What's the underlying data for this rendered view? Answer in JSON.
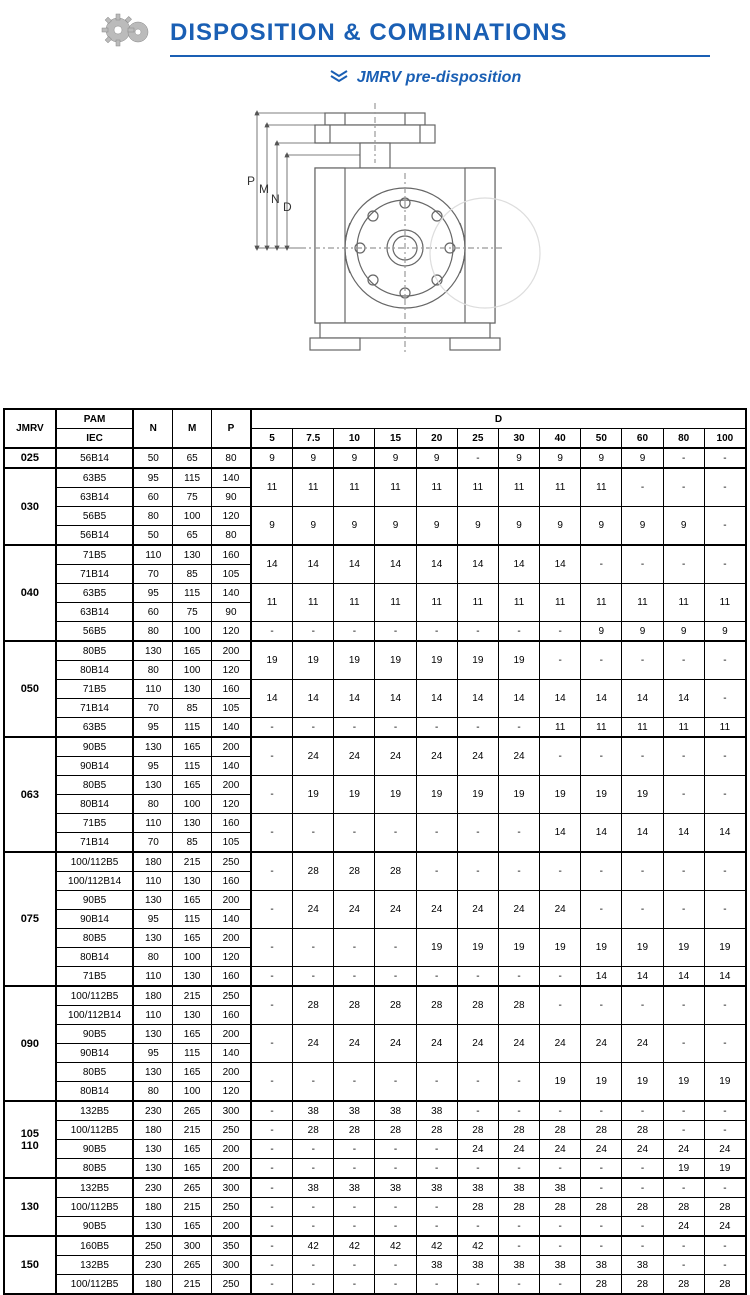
{
  "header": {
    "title": "DISPOSITION & COMBINATIONS",
    "subtitle": "JMRV pre-disposition"
  },
  "diagram_labels": [
    "P",
    "M",
    "N",
    "D"
  ],
  "table": {
    "header_row1": [
      "JMRV",
      "PAM",
      "N",
      "M",
      "P",
      "D"
    ],
    "header_row2_pam": "IEC",
    "d_cols": [
      "5",
      "7.5",
      "10",
      "15",
      "20",
      "25",
      "30",
      "40",
      "50",
      "60",
      "80",
      "100"
    ],
    "groups": [
      {
        "jmrv": "025",
        "rows": [
          {
            "iec": "56B14",
            "n": "50",
            "m": "65",
            "p": "80",
            "d": [
              "9",
              "9",
              "9",
              "9",
              "9",
              "-",
              "9",
              "9",
              "9",
              "9",
              "-",
              "-"
            ]
          }
        ]
      },
      {
        "jmrv": "030",
        "rows": [
          {
            "iec": "63B5",
            "n": "95",
            "m": "115",
            "p": "140",
            "d": [
              "11",
              "11",
              "11",
              "11",
              "11",
              "11",
              "11",
              "11",
              "11",
              "-",
              "-",
              "-"
            ],
            "span": 2
          },
          {
            "iec": "63B14",
            "n": "60",
            "m": "75",
            "p": "90"
          },
          {
            "iec": "56B5",
            "n": "80",
            "m": "100",
            "p": "120",
            "d": [
              "9",
              "9",
              "9",
              "9",
              "9",
              "9",
              "9",
              "9",
              "9",
              "9",
              "9",
              "-"
            ],
            "span": 2
          },
          {
            "iec": "56B14",
            "n": "50",
            "m": "65",
            "p": "80"
          }
        ]
      },
      {
        "jmrv": "040",
        "rows": [
          {
            "iec": "71B5",
            "n": "110",
            "m": "130",
            "p": "160",
            "d": [
              "14",
              "14",
              "14",
              "14",
              "14",
              "14",
              "14",
              "14",
              "-",
              "-",
              "-",
              "-"
            ],
            "span": 2
          },
          {
            "iec": "71B14",
            "n": "70",
            "m": "85",
            "p": "105"
          },
          {
            "iec": "63B5",
            "n": "95",
            "m": "115",
            "p": "140",
            "d": [
              "11",
              "11",
              "11",
              "11",
              "11",
              "11",
              "11",
              "11",
              "11",
              "11",
              "11",
              "11"
            ],
            "span": 2
          },
          {
            "iec": "63B14",
            "n": "60",
            "m": "75",
            "p": "90"
          },
          {
            "iec": "56B5",
            "n": "80",
            "m": "100",
            "p": "120",
            "d": [
              "-",
              "-",
              "-",
              "-",
              "-",
              "-",
              "-",
              "-",
              "9",
              "9",
              "9",
              "9"
            ]
          }
        ]
      },
      {
        "jmrv": "050",
        "rows": [
          {
            "iec": "80B5",
            "n": "130",
            "m": "165",
            "p": "200",
            "d": [
              "19",
              "19",
              "19",
              "19",
              "19",
              "19",
              "19",
              "-",
              "-",
              "-",
              "-",
              "-"
            ],
            "span": 2
          },
          {
            "iec": "80B14",
            "n": "80",
            "m": "100",
            "p": "120"
          },
          {
            "iec": "71B5",
            "n": "110",
            "m": "130",
            "p": "160",
            "d": [
              "14",
              "14",
              "14",
              "14",
              "14",
              "14",
              "14",
              "14",
              "14",
              "14",
              "14",
              "-"
            ],
            "span": 2
          },
          {
            "iec": "71B14",
            "n": "70",
            "m": "85",
            "p": "105"
          },
          {
            "iec": "63B5",
            "n": "95",
            "m": "115",
            "p": "140",
            "d": [
              "-",
              "-",
              "-",
              "-",
              "-",
              "-",
              "-",
              "11",
              "11",
              "11",
              "11",
              "11"
            ]
          }
        ]
      },
      {
        "jmrv": "063",
        "rows": [
          {
            "iec": "90B5",
            "n": "130",
            "m": "165",
            "p": "200",
            "d": [
              "-",
              "24",
              "24",
              "24",
              "24",
              "24",
              "24",
              "-",
              "-",
              "-",
              "-",
              "-"
            ],
            "span": 2
          },
          {
            "iec": "90B14",
            "n": "95",
            "m": "115",
            "p": "140"
          },
          {
            "iec": "80B5",
            "n": "130",
            "m": "165",
            "p": "200",
            "d": [
              "-",
              "19",
              "19",
              "19",
              "19",
              "19",
              "19",
              "19",
              "19",
              "19",
              "-",
              "-"
            ],
            "span": 2
          },
          {
            "iec": "80B14",
            "n": "80",
            "m": "100",
            "p": "120"
          },
          {
            "iec": "71B5",
            "n": "110",
            "m": "130",
            "p": "160",
            "d": [
              "-",
              "-",
              "-",
              "-",
              "-",
              "-",
              "-",
              "14",
              "14",
              "14",
              "14",
              "14"
            ],
            "span": 2
          },
          {
            "iec": "71B14",
            "n": "70",
            "m": "85",
            "p": "105"
          }
        ]
      },
      {
        "jmrv": "075",
        "rows": [
          {
            "iec": "100/112B5",
            "n": "180",
            "m": "215",
            "p": "250",
            "d": [
              "-",
              "28",
              "28",
              "28",
              "-",
              "-",
              "-",
              "-",
              "-",
              "-",
              "-",
              "-"
            ],
            "span": 2
          },
          {
            "iec": "100/112B14",
            "n": "110",
            "m": "130",
            "p": "160"
          },
          {
            "iec": "90B5",
            "n": "130",
            "m": "165",
            "p": "200",
            "d": [
              "-",
              "24",
              "24",
              "24",
              "24",
              "24",
              "24",
              "24",
              "-",
              "-",
              "-",
              "-"
            ],
            "span": 2
          },
          {
            "iec": "90B14",
            "n": "95",
            "m": "115",
            "p": "140"
          },
          {
            "iec": "80B5",
            "n": "130",
            "m": "165",
            "p": "200",
            "d": [
              "-",
              "-",
              "-",
              "-",
              "19",
              "19",
              "19",
              "19",
              "19",
              "19",
              "19",
              "19"
            ],
            "span": 2
          },
          {
            "iec": "80B14",
            "n": "80",
            "m": "100",
            "p": "120"
          },
          {
            "iec": "71B5",
            "n": "110",
            "m": "130",
            "p": "160",
            "d": [
              "-",
              "-",
              "-",
              "-",
              "-",
              "-",
              "-",
              "-",
              "14",
              "14",
              "14",
              "14"
            ]
          }
        ]
      },
      {
        "jmrv": "090",
        "rows": [
          {
            "iec": "100/112B5",
            "n": "180",
            "m": "215",
            "p": "250",
            "d": [
              "-",
              "28",
              "28",
              "28",
              "28",
              "28",
              "28",
              "-",
              "-",
              "-",
              "-",
              "-"
            ],
            "span": 2
          },
          {
            "iec": "100/112B14",
            "n": "110",
            "m": "130",
            "p": "160"
          },
          {
            "iec": "90B5",
            "n": "130",
            "m": "165",
            "p": "200",
            "d": [
              "-",
              "24",
              "24",
              "24",
              "24",
              "24",
              "24",
              "24",
              "24",
              "24",
              "-",
              "-"
            ],
            "span": 2
          },
          {
            "iec": "90B14",
            "n": "95",
            "m": "115",
            "p": "140"
          },
          {
            "iec": "80B5",
            "n": "130",
            "m": "165",
            "p": "200",
            "d": [
              "-",
              "-",
              "-",
              "-",
              "-",
              "-",
              "-",
              "19",
              "19",
              "19",
              "19",
              "19"
            ],
            "span": 2
          },
          {
            "iec": "80B14",
            "n": "80",
            "m": "100",
            "p": "120"
          }
        ]
      },
      {
        "jmrv": "105\n110",
        "rows": [
          {
            "iec": "132B5",
            "n": "230",
            "m": "265",
            "p": "300",
            "d": [
              "-",
              "38",
              "38",
              "38",
              "38",
              "-",
              "-",
              "-",
              "-",
              "-",
              "-",
              "-"
            ]
          },
          {
            "iec": "100/112B5",
            "n": "180",
            "m": "215",
            "p": "250",
            "d": [
              "-",
              "28",
              "28",
              "28",
              "28",
              "28",
              "28",
              "28",
              "28",
              "28",
              "-",
              "-"
            ]
          },
          {
            "iec": "90B5",
            "n": "130",
            "m": "165",
            "p": "200",
            "d": [
              "-",
              "-",
              "-",
              "-",
              "-",
              "24",
              "24",
              "24",
              "24",
              "24",
              "24",
              "24"
            ]
          },
          {
            "iec": "80B5",
            "n": "130",
            "m": "165",
            "p": "200",
            "d": [
              "-",
              "-",
              "-",
              "-",
              "-",
              "-",
              "-",
              "-",
              "-",
              "-",
              "19",
              "19"
            ]
          }
        ]
      },
      {
        "jmrv": "130",
        "rows": [
          {
            "iec": "132B5",
            "n": "230",
            "m": "265",
            "p": "300",
            "d": [
              "-",
              "38",
              "38",
              "38",
              "38",
              "38",
              "38",
              "38",
              "-",
              "-",
              "-",
              "-"
            ]
          },
          {
            "iec": "100/112B5",
            "n": "180",
            "m": "215",
            "p": "250",
            "d": [
              "-",
              "-",
              "-",
              "-",
              "-",
              "28",
              "28",
              "28",
              "28",
              "28",
              "28",
              "28"
            ]
          },
          {
            "iec": "90B5",
            "n": "130",
            "m": "165",
            "p": "200",
            "d": [
              "-",
              "-",
              "-",
              "-",
              "-",
              "-",
              "-",
              "-",
              "-",
              "-",
              "24",
              "24"
            ]
          }
        ]
      },
      {
        "jmrv": "150",
        "rows": [
          {
            "iec": "160B5",
            "n": "250",
            "m": "300",
            "p": "350",
            "d": [
              "-",
              "42",
              "42",
              "42",
              "42",
              "42",
              "-",
              "-",
              "-",
              "-",
              "-",
              "-"
            ]
          },
          {
            "iec": "132B5",
            "n": "230",
            "m": "265",
            "p": "300",
            "d": [
              "-",
              "-",
              "-",
              "-",
              "38",
              "38",
              "38",
              "38",
              "38",
              "38",
              "-",
              "-"
            ]
          },
          {
            "iec": "100/112B5",
            "n": "180",
            "m": "215",
            "p": "250",
            "d": [
              "-",
              "-",
              "-",
              "-",
              "-",
              "-",
              "-",
              "-",
              "28",
              "28",
              "28",
              "28"
            ]
          }
        ]
      }
    ]
  },
  "colors": {
    "blue": "#1a5fb4",
    "line": "#888"
  }
}
